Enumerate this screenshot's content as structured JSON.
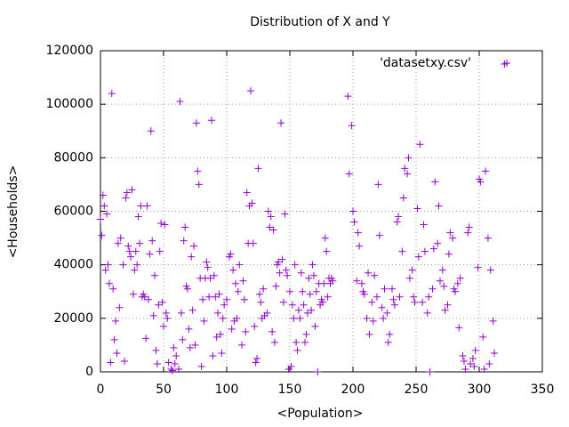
{
  "chart_data": {
    "type": "scatter",
    "title": "Distribution of X and Y",
    "x_label": "<Population>",
    "y_label": "<Households>",
    "xlim": [
      0,
      350
    ],
    "xticks": [
      0,
      50,
      100,
      150,
      200,
      250,
      300,
      350
    ],
    "ylim": [
      0,
      120000
    ],
    "yticks": [
      0,
      20000,
      40000,
      60000,
      80000,
      100000,
      120000
    ],
    "grid": true,
    "legend_position": "top-right",
    "series": [
      {
        "name": "'datasetxy.csv'",
        "color": "#9400d3",
        "x": [
          0,
          1,
          2,
          3,
          4,
          5,
          6,
          7,
          8,
          9,
          10,
          11,
          12,
          13,
          14,
          15,
          16,
          18,
          19,
          20,
          21,
          22,
          23,
          24,
          25,
          26,
          27,
          28,
          29,
          30,
          31,
          32,
          33,
          34,
          35,
          36,
          37,
          38,
          39,
          40,
          41,
          42,
          43,
          44,
          45,
          46,
          47,
          48,
          49,
          50,
          51,
          52,
          53,
          54,
          56,
          57,
          58,
          59,
          60,
          62,
          63,
          64,
          65,
          66,
          67,
          68,
          69,
          70,
          71,
          72,
          73,
          74,
          75,
          76,
          77,
          78,
          79,
          80,
          81,
          82,
          83,
          84,
          85,
          86,
          87,
          88,
          89,
          90,
          91,
          92,
          93,
          94,
          95,
          96,
          97,
          98,
          100,
          102,
          103,
          104,
          105,
          106,
          107,
          108,
          109,
          110,
          112,
          113,
          114,
          115,
          116,
          117,
          118,
          119,
          120,
          121,
          122,
          123,
          124,
          125,
          126,
          127,
          128,
          129,
          130,
          132,
          133,
          134,
          135,
          136,
          137,
          138,
          139,
          140,
          141,
          142,
          143,
          144,
          145,
          146,
          147,
          148,
          149,
          150,
          151,
          152,
          153,
          154,
          155,
          156,
          157,
          158,
          159,
          160,
          161,
          162,
          163,
          164,
          165,
          166,
          167,
          168,
          169,
          170,
          171,
          172,
          173,
          174,
          175,
          176,
          177,
          178,
          179,
          180,
          181,
          182,
          183,
          184,
          196,
          197,
          199,
          200,
          201,
          203,
          204,
          205,
          207,
          208,
          209,
          211,
          212,
          213,
          215,
          216,
          217,
          219,
          220,
          221,
          223,
          224,
          225,
          227,
          228,
          229,
          231,
          232,
          233,
          235,
          236,
          237,
          239,
          240,
          241,
          243,
          244,
          245,
          247,
          248,
          249,
          251,
          252,
          253,
          255,
          256,
          257,
          259,
          260,
          261,
          263,
          264,
          265,
          267,
          268,
          269,
          271,
          272,
          273,
          275,
          276,
          277,
          279,
          280,
          281,
          283,
          284,
          285,
          287,
          288,
          289,
          291,
          292,
          293,
          295,
          296,
          297,
          299,
          300,
          301,
          303,
          304,
          305,
          307,
          308,
          309,
          311,
          312,
          320
        ],
        "values": [
          57000,
          51000,
          66000,
          62000,
          38000,
          59000,
          40000,
          33000,
          3500,
          104000,
          31000,
          12000,
          19000,
          7000,
          48000,
          24000,
          50000,
          40000,
          4000,
          65000,
          67000,
          47000,
          45000,
          43000,
          68000,
          29000,
          38000,
          45000,
          40000,
          58000,
          48000,
          62000,
          28000,
          29000,
          28000,
          12500,
          62000,
          27000,
          44000,
          90000,
          49000,
          21000,
          36000,
          8000,
          3000,
          25000,
          45000,
          55500,
          26000,
          17000,
          55000,
          22000,
          20000,
          3500,
          1000,
          500,
          9000,
          3000,
          6000,
          1000,
          101000,
          22000,
          12000,
          49000,
          54000,
          32000,
          31000,
          16000,
          9000,
          43000,
          23000,
          47000,
          10000,
          93000,
          75000,
          70000,
          35000,
          2000,
          27000,
          19000,
          35000,
          41000,
          39000,
          28000,
          35000,
          94000,
          6000,
          36000,
          28000,
          13000,
          22000,
          29000,
          14000,
          7000,
          20000,
          25000,
          27000,
          43000,
          44000,
          16000,
          38000,
          19000,
          33000,
          20000,
          30000,
          40000,
          10000,
          34000,
          27000,
          15000,
          67000,
          48000,
          62000,
          105000,
          63000,
          48000,
          17000,
          3500,
          5000,
          76000,
          29000,
          26000,
          20000,
          31000,
          21000,
          22000,
          60000,
          54000,
          58000,
          15000,
          53000,
          11000,
          32000,
          40000,
          41000,
          37000,
          93000,
          42000,
          26000,
          59000,
          38000,
          36000,
          1000,
          30000,
          2000,
          25000,
          20000,
          40000,
          11000,
          8000,
          23000,
          20000,
          37000,
          30000,
          25000,
          11000,
          14000,
          22000,
          35000,
          29000,
          23000,
          40000,
          36000,
          17000,
          30000,
          0,
          33000,
          25000,
          27000,
          26000,
          33000,
          50000,
          45000,
          28000,
          35000,
          33000,
          35000,
          34000,
          103000,
          74000,
          92000,
          60000,
          56000,
          34000,
          52000,
          47000,
          33000,
          30000,
          29000,
          20000,
          37000,
          14000,
          26000,
          19000,
          36000,
          28000,
          70000,
          51000,
          24000,
          20000,
          31000,
          22000,
          11000,
          14000,
          31000,
          27000,
          25000,
          56000,
          58000,
          28000,
          45000,
          65000,
          76000,
          74000,
          80000,
          35000,
          38000,
          28000,
          26000,
          61000,
          43000,
          85000,
          26000,
          55000,
          45000,
          22000,
          28000,
          0,
          31000,
          46000,
          71000,
          48000,
          62000,
          34000,
          38000,
          32000,
          23000,
          25000,
          44000,
          52000,
          50000,
          31000,
          30000,
          33000,
          16500,
          35000,
          6000,
          4000,
          1000,
          52000,
          54000,
          3000,
          5000,
          2000,
          8000,
          39000,
          72000,
          71000,
          13000,
          1000,
          75000,
          50000,
          3000,
          38000,
          19000,
          7000,
          115000
        ]
      }
    ]
  }
}
